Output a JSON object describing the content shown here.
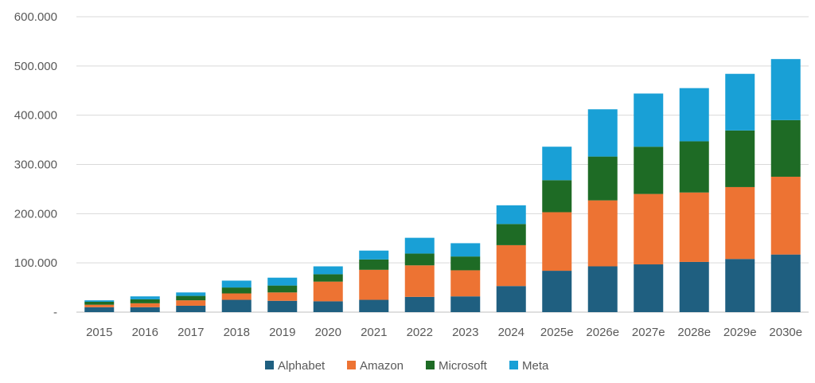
{
  "chart_data": {
    "type": "bar",
    "stacked": true,
    "title": "",
    "xlabel": "",
    "ylabel": "",
    "ylim": [
      0,
      600000
    ],
    "y_ticks": [
      0,
      100000,
      200000,
      300000,
      400000,
      500000,
      600000
    ],
    "y_tick_labels": [
      "-",
      "100.000",
      "200.000",
      "300.000",
      "400.000",
      "500.000",
      "600.000"
    ],
    "grid": true,
    "legend_position": "bottom",
    "categories": [
      "2015",
      "2016",
      "2017",
      "2018",
      "2019",
      "2020",
      "2021",
      "2022",
      "2023",
      "2024",
      "2025e",
      "2026e",
      "2027e",
      "2028e",
      "2029e",
      "2030e"
    ],
    "series": [
      {
        "name": "Alphabet",
        "color": "#1f5f80",
        "values": [
          10000,
          10000,
          13000,
          25000,
          23000,
          22000,
          25000,
          31000,
          32000,
          53000,
          84000,
          93000,
          97000,
          102000,
          108000,
          117000
        ]
      },
      {
        "name": "Amazon",
        "color": "#ed7333",
        "values": [
          5000,
          8000,
          11000,
          13000,
          17000,
          40000,
          61000,
          64000,
          53000,
          83000,
          119000,
          134000,
          143000,
          141000,
          146000,
          158000
        ]
      },
      {
        "name": "Microsoft",
        "color": "#1e6b25",
        "values": [
          6000,
          8000,
          9000,
          12000,
          14000,
          15000,
          21000,
          24000,
          28000,
          43000,
          65000,
          89000,
          96000,
          104000,
          115000,
          115000
        ]
      },
      {
        "name": "Meta",
        "color": "#19a0d6",
        "values": [
          3000,
          6000,
          7000,
          14000,
          16000,
          16000,
          18000,
          32000,
          27000,
          38000,
          68000,
          96000,
          108000,
          108000,
          115000,
          124000
        ]
      }
    ]
  }
}
